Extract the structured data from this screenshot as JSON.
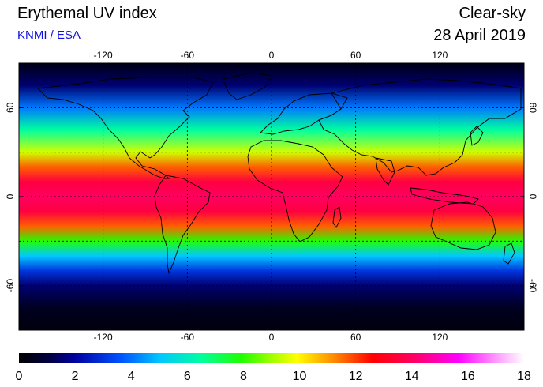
{
  "header": {
    "title": "Erythemal UV index",
    "subtitle": "KNMI / ESA",
    "sky": "Clear-sky",
    "date": "28 April 2019"
  },
  "map": {
    "lon_ticks": [
      "-120",
      "-60",
      "0",
      "60",
      "120"
    ],
    "lon_values": [
      -120,
      -60,
      0,
      60,
      120
    ],
    "lat_ticks": [
      "60",
      "0",
      "-60"
    ],
    "lat_values": [
      60,
      0,
      -60
    ],
    "lat_range": [
      -90,
      90
    ],
    "lon_range": [
      -180,
      180
    ],
    "grid_lats": [
      -60,
      -30,
      0,
      30,
      60
    ],
    "grid_lons": [
      -120,
      -60,
      0,
      60,
      120
    ]
  },
  "colorbar": {
    "labels": [
      "0",
      "2",
      "4",
      "6",
      "8",
      "10",
      "12",
      "14",
      "16",
      "18"
    ],
    "min": 0,
    "max": 18
  },
  "chart_data": {
    "type": "heatmap",
    "title": "Erythemal UV index",
    "quantity": "UV index",
    "range": [
      0,
      18
    ],
    "latitude_profile": [
      {
        "lat": 90,
        "uv": 0.3
      },
      {
        "lat": 75,
        "uv": 1.5
      },
      {
        "lat": 60,
        "uv": 4
      },
      {
        "lat": 45,
        "uv": 6.5
      },
      {
        "lat": 30,
        "uv": 9.5
      },
      {
        "lat": 20,
        "uv": 11.5
      },
      {
        "lat": 10,
        "uv": 13.5
      },
      {
        "lat": 0,
        "uv": 14
      },
      {
        "lat": -10,
        "uv": 13.5
      },
      {
        "lat": -20,
        "uv": 11.5
      },
      {
        "lat": -30,
        "uv": 8
      },
      {
        "lat": -40,
        "uv": 5
      },
      {
        "lat": -50,
        "uv": 3
      },
      {
        "lat": -60,
        "uv": 1.5
      },
      {
        "lat": -75,
        "uv": 0.5
      },
      {
        "lat": -90,
        "uv": 0.2
      }
    ]
  }
}
